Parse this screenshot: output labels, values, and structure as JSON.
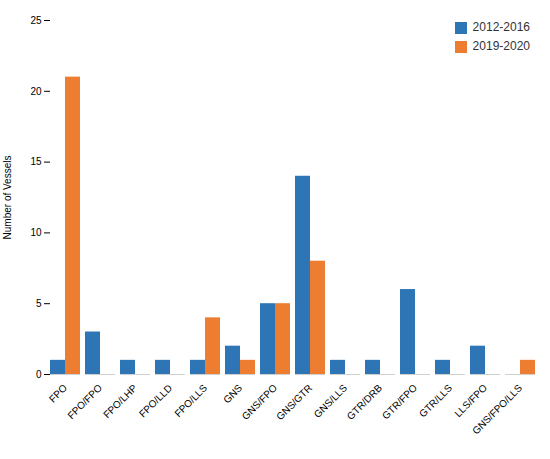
{
  "chart_data": {
    "type": "bar",
    "categories": [
      "FPO",
      "FPO/FPO",
      "FPO/LHP",
      "FPO/LLD",
      "FPO/LLS",
      "GNS",
      "GNS/FPO",
      "GNS/GTR",
      "GNS/LLS",
      "GTR/DRB",
      "GTR/FPO",
      "GTR/LLS",
      "LLS/FPO",
      "GNS/FPO/LLS"
    ],
    "series": [
      {
        "name": "2012-2016",
        "color": "#2e75b6",
        "values": [
          1,
          3,
          1,
          1,
          1,
          2,
          5,
          14,
          1,
          1,
          6,
          1,
          2,
          0
        ]
      },
      {
        "name": "2019-2020",
        "color": "#ed7d31",
        "values": [
          21,
          0,
          0,
          0,
          4,
          1,
          5,
          8,
          0,
          0,
          0,
          0,
          0,
          1
        ]
      }
    ],
    "ylabel": "Number of Vessels",
    "ylim": [
      0,
      25
    ],
    "yticks": [
      0,
      5,
      10,
      15,
      20,
      25
    ],
    "legend": "upper right",
    "grid": false
  }
}
